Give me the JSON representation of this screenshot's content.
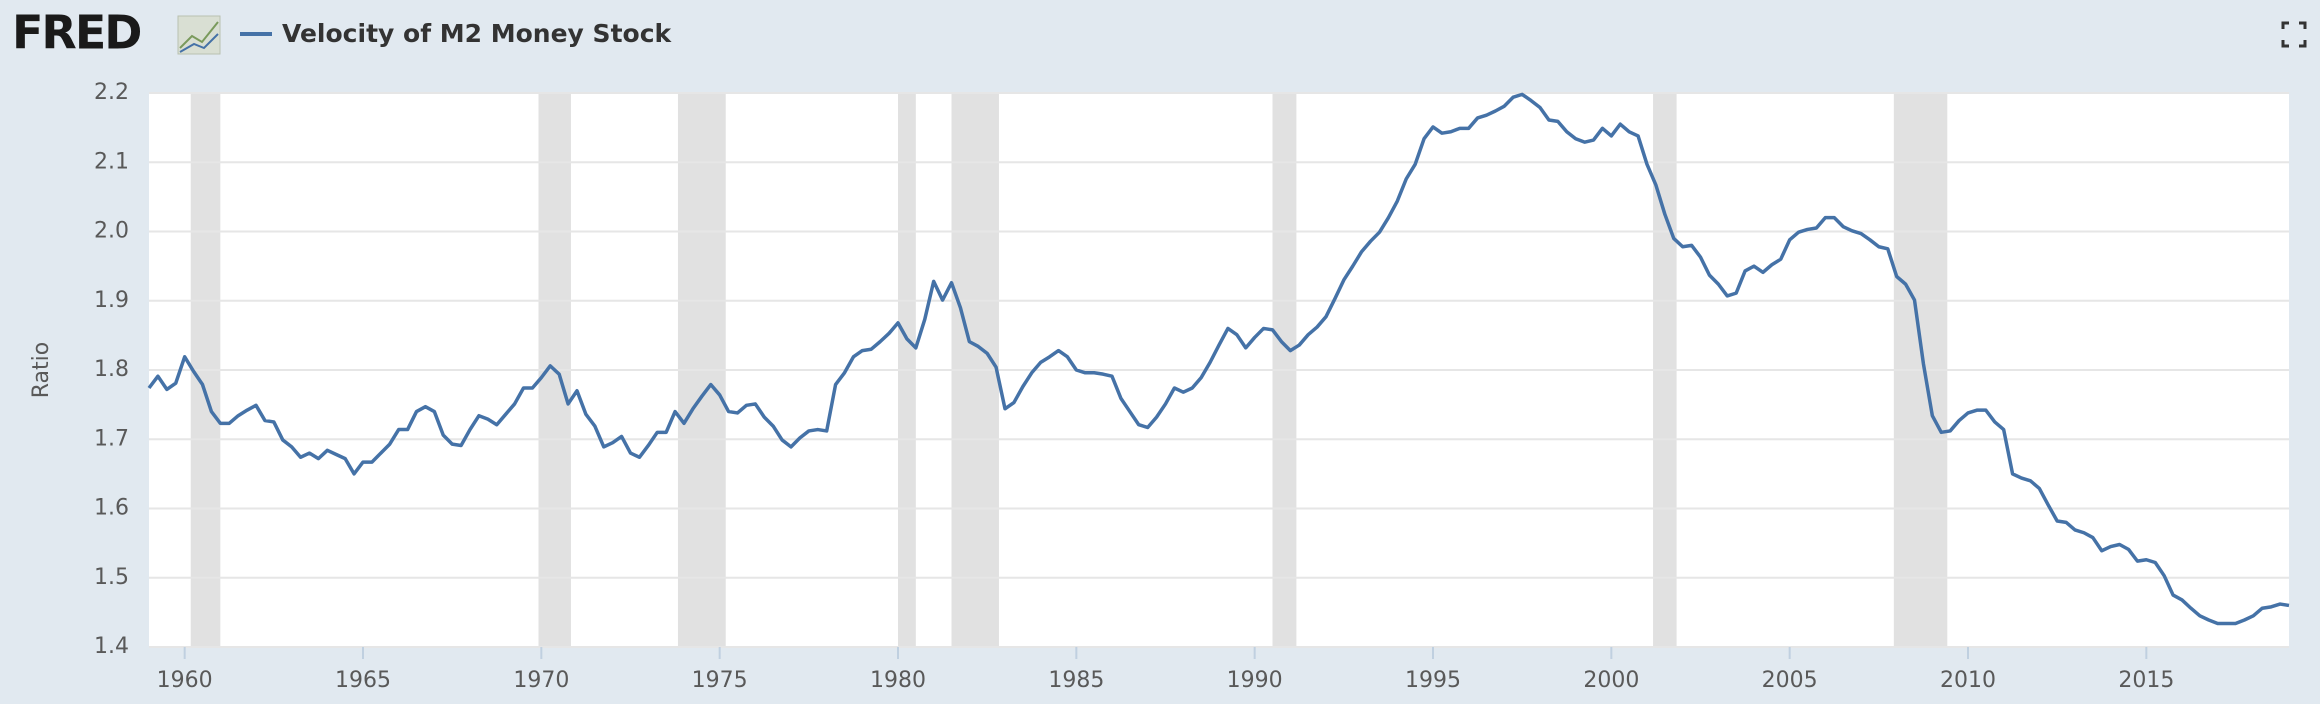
{
  "brand": "FRED",
  "chart_data": {
    "type": "line",
    "y_label": "Ratio",
    "xlim": [
      1959,
      2019
    ],
    "ylim": [
      1.4,
      2.2
    ],
    "xticks": [
      1960,
      1965,
      1970,
      1975,
      1980,
      1985,
      1990,
      1995,
      2000,
      2005,
      2010,
      2015
    ],
    "yticks": [
      1.4,
      1.5,
      1.6,
      1.7,
      1.8,
      1.9,
      {
        "value": 2,
        "label": "2.0"
      },
      2.1,
      2.2
    ],
    "grid": true,
    "recession_color": "#e1e1e1",
    "recessions": [
      {
        "start": 1960.17,
        "end": 1961.0
      },
      {
        "start": 1969.92,
        "end": 1970.83
      },
      {
        "start": 1973.83,
        "end": 1975.17
      },
      {
        "start": 1980.0,
        "end": 1980.5
      },
      {
        "start": 1981.5,
        "end": 1982.83
      },
      {
        "start": 1990.5,
        "end": 1991.17
      },
      {
        "start": 2001.17,
        "end": 2001.83
      },
      {
        "start": 2007.92,
        "end": 2009.42
      }
    ],
    "x": [
      1959,
      1959.25,
      1959.5,
      1959.75,
      1960,
      1960.25,
      1960.5,
      1960.75,
      1961,
      1961.25,
      1961.5,
      1961.75,
      1962,
      1962.25,
      1962.5,
      1962.75,
      1963,
      1963.25,
      1963.5,
      1963.75,
      1964,
      1964.25,
      1964.5,
      1964.75,
      1965,
      1965.25,
      1965.5,
      1965.75,
      1966,
      1966.25,
      1966.5,
      1966.75,
      1967,
      1967.25,
      1967.5,
      1967.75,
      1968,
      1968.25,
      1968.5,
      1968.75,
      1969,
      1969.25,
      1969.5,
      1969.75,
      1970,
      1970.25,
      1970.5,
      1970.75,
      1971,
      1971.25,
      1971.5,
      1971.75,
      1972,
      1972.25,
      1972.5,
      1972.75,
      1973,
      1973.25,
      1973.5,
      1973.75,
      1974,
      1974.25,
      1974.5,
      1974.75,
      1975,
      1975.25,
      1975.5,
      1975.75,
      1976,
      1976.25,
      1976.5,
      1976.75,
      1977,
      1977.25,
      1977.5,
      1977.75,
      1978,
      1978.25,
      1978.5,
      1978.75,
      1979,
      1979.25,
      1979.5,
      1979.75,
      1980,
      1980.25,
      1980.5,
      1980.75,
      1981,
      1981.25,
      1981.5,
      1981.75,
      1982,
      1982.25,
      1982.5,
      1982.75,
      1983,
      1983.25,
      1983.5,
      1983.75,
      1984,
      1984.25,
      1984.5,
      1984.75,
      1985,
      1985.25,
      1985.5,
      1985.75,
      1986,
      1986.25,
      1986.5,
      1986.75,
      1987,
      1987.25,
      1987.5,
      1987.75,
      1988,
      1988.25,
      1988.5,
      1988.75,
      1989,
      1989.25,
      1989.5,
      1989.75,
      1990,
      1990.25,
      1990.5,
      1990.75,
      1991,
      1991.25,
      1991.5,
      1991.75,
      1992,
      1992.25,
      1992.5,
      1992.75,
      1993,
      1993.25,
      1993.5,
      1993.75,
      1994,
      1994.25,
      1994.5,
      1994.75,
      1995,
      1995.25,
      1995.5,
      1995.75,
      1996,
      1996.25,
      1996.5,
      1996.75,
      1997,
      1997.25,
      1997.5,
      1997.75,
      1998,
      1998.25,
      1998.5,
      1998.75,
      1999,
      1999.25,
      1999.5,
      1999.75,
      2000,
      2000.25,
      2000.5,
      2000.75,
      2001,
      2001.25,
      2001.5,
      2001.75,
      2002,
      2002.25,
      2002.5,
      2002.75,
      2003,
      2003.25,
      2003.5,
      2003.75,
      2004,
      2004.25,
      2004.5,
      2004.75,
      2005,
      2005.25,
      2005.5,
      2005.75,
      2006,
      2006.25,
      2006.5,
      2006.75,
      2007,
      2007.25,
      2007.5,
      2007.75,
      2008,
      2008.25,
      2008.5,
      2008.75,
      2009,
      2009.25,
      2009.5,
      2009.75,
      2010,
      2010.25,
      2010.5,
      2010.75,
      2011,
      2011.25,
      2011.5,
      2011.75,
      2012,
      2012.25,
      2012.5,
      2012.75,
      2013,
      2013.25,
      2013.5,
      2013.75,
      2014,
      2014.25,
      2014.5,
      2014.75,
      2015,
      2015.25,
      2015.5,
      2015.75,
      2016,
      2016.25,
      2016.5,
      2016.75,
      2017,
      2017.25,
      2017.5,
      2017.75,
      2018,
      2018.25,
      2018.5,
      2018.75,
      2019
    ],
    "series": [
      {
        "name": "Velocity of M2 Money Stock",
        "color": "#4572a7",
        "values": [
          1.774,
          1.791,
          1.772,
          1.781,
          1.819,
          1.798,
          1.779,
          1.74,
          1.723,
          1.723,
          1.734,
          1.742,
          1.749,
          1.727,
          1.725,
          1.699,
          1.689,
          1.674,
          1.68,
          1.672,
          1.684,
          1.678,
          1.672,
          1.65,
          1.667,
          1.667,
          1.68,
          1.693,
          1.714,
          1.714,
          1.74,
          1.747,
          1.74,
          1.706,
          1.693,
          1.691,
          1.714,
          1.734,
          1.729,
          1.721,
          1.736,
          1.751,
          1.774,
          1.774,
          1.789,
          1.806,
          1.794,
          1.751,
          1.77,
          1.736,
          1.719,
          1.689,
          1.695,
          1.704,
          1.68,
          1.674,
          1.691,
          1.71,
          1.71,
          1.74,
          1.723,
          1.744,
          1.762,
          1.779,
          1.764,
          1.74,
          1.738,
          1.749,
          1.751,
          1.732,
          1.719,
          1.699,
          1.689,
          1.702,
          1.712,
          1.714,
          1.712,
          1.779,
          1.796,
          1.819,
          1.828,
          1.83,
          1.841,
          1.853,
          1.868,
          1.845,
          1.832,
          1.873,
          1.928,
          1.901,
          1.926,
          1.89,
          1.841,
          1.834,
          1.824,
          1.804,
          1.744,
          1.753,
          1.776,
          1.796,
          1.811,
          1.819,
          1.828,
          1.819,
          1.8,
          1.796,
          1.796,
          1.794,
          1.791,
          1.759,
          1.74,
          1.721,
          1.717,
          1.732,
          1.751,
          1.774,
          1.768,
          1.774,
          1.789,
          1.811,
          1.836,
          1.86,
          1.851,
          1.832,
          1.847,
          1.86,
          1.858,
          1.841,
          1.828,
          1.836,
          1.851,
          1.862,
          1.877,
          1.903,
          1.93,
          1.95,
          1.971,
          1.986,
          1.999,
          2.02,
          2.044,
          2.076,
          2.097,
          2.134,
          2.151,
          2.142,
          2.144,
          2.149,
          2.149,
          2.164,
          2.168,
          2.174,
          2.181,
          2.194,
          2.198,
          2.189,
          2.179,
          2.161,
          2.159,
          2.144,
          2.134,
          2.129,
          2.132,
          2.149,
          2.138,
          2.155,
          2.144,
          2.138,
          2.097,
          2.067,
          2.025,
          1.99,
          1.978,
          1.98,
          1.963,
          1.937,
          1.924,
          1.907,
          1.911,
          1.943,
          1.95,
          1.941,
          1.952,
          1.96,
          1.988,
          1.999,
          2.003,
          2.005,
          2.02,
          2.02,
          2.007,
          2.001,
          1.997,
          1.988,
          1.978,
          1.975,
          1.935,
          1.924,
          1.901,
          1.809,
          1.734,
          1.71,
          1.712,
          1.727,
          1.738,
          1.742,
          1.742,
          1.725,
          1.714,
          1.65,
          1.644,
          1.64,
          1.629,
          1.605,
          1.582,
          1.58,
          1.569,
          1.565,
          1.558,
          1.539,
          1.545,
          1.548,
          1.541,
          1.524,
          1.526,
          1.522,
          1.503,
          1.475,
          1.468,
          1.456,
          1.445,
          1.439,
          1.434,
          1.434,
          1.434,
          1.439,
          1.445,
          1.456,
          1.458,
          1.462,
          1.46
        ]
      }
    ]
  }
}
